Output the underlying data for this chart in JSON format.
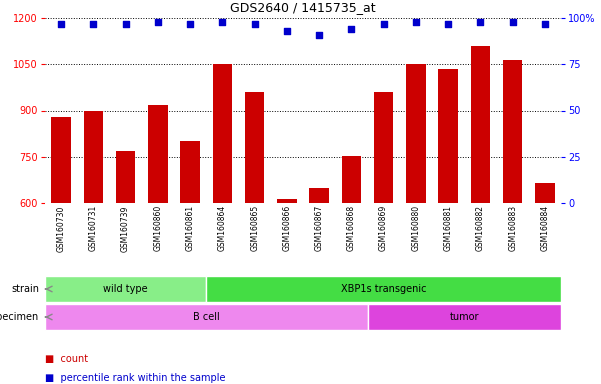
{
  "title": "GDS2640 / 1415735_at",
  "samples": [
    "GSM160730",
    "GSM160731",
    "GSM160739",
    "GSM160860",
    "GSM160861",
    "GSM160864",
    "GSM160865",
    "GSM160866",
    "GSM160867",
    "GSM160868",
    "GSM160869",
    "GSM160880",
    "GSM160881",
    "GSM160882",
    "GSM160883",
    "GSM160884"
  ],
  "counts": [
    880,
    898,
    768,
    918,
    800,
    1050,
    960,
    613,
    648,
    754,
    960,
    1052,
    1035,
    1110,
    1065,
    665
  ],
  "percentiles": [
    97,
    97,
    97,
    98,
    97,
    98,
    97,
    93,
    91,
    94,
    97,
    98,
    97,
    98,
    98,
    97
  ],
  "ylim_left": [
    600,
    1200
  ],
  "ylim_right": [
    0,
    100
  ],
  "yticks_left": [
    600,
    750,
    900,
    1050,
    1200
  ],
  "yticks_right": [
    0,
    25,
    50,
    75,
    100
  ],
  "bar_color": "#cc0000",
  "dot_color": "#0000cc",
  "strain_groups": [
    {
      "label": "wild type",
      "start": 0,
      "end": 5,
      "color": "#88ee88"
    },
    {
      "label": "XBP1s transgenic",
      "start": 5,
      "end": 16,
      "color": "#44dd44"
    }
  ],
  "specimen_groups": [
    {
      "label": "B cell",
      "start": 0,
      "end": 10,
      "color": "#ee88ee"
    },
    {
      "label": "tumor",
      "start": 10,
      "end": 16,
      "color": "#dd44dd"
    }
  ],
  "strain_label": "strain",
  "specimen_label": "specimen",
  "legend_count_label": "count",
  "legend_percentile_label": "percentile rank within the sample",
  "background_color": "#ffffff",
  "xticklabel_bg": "#cccccc"
}
